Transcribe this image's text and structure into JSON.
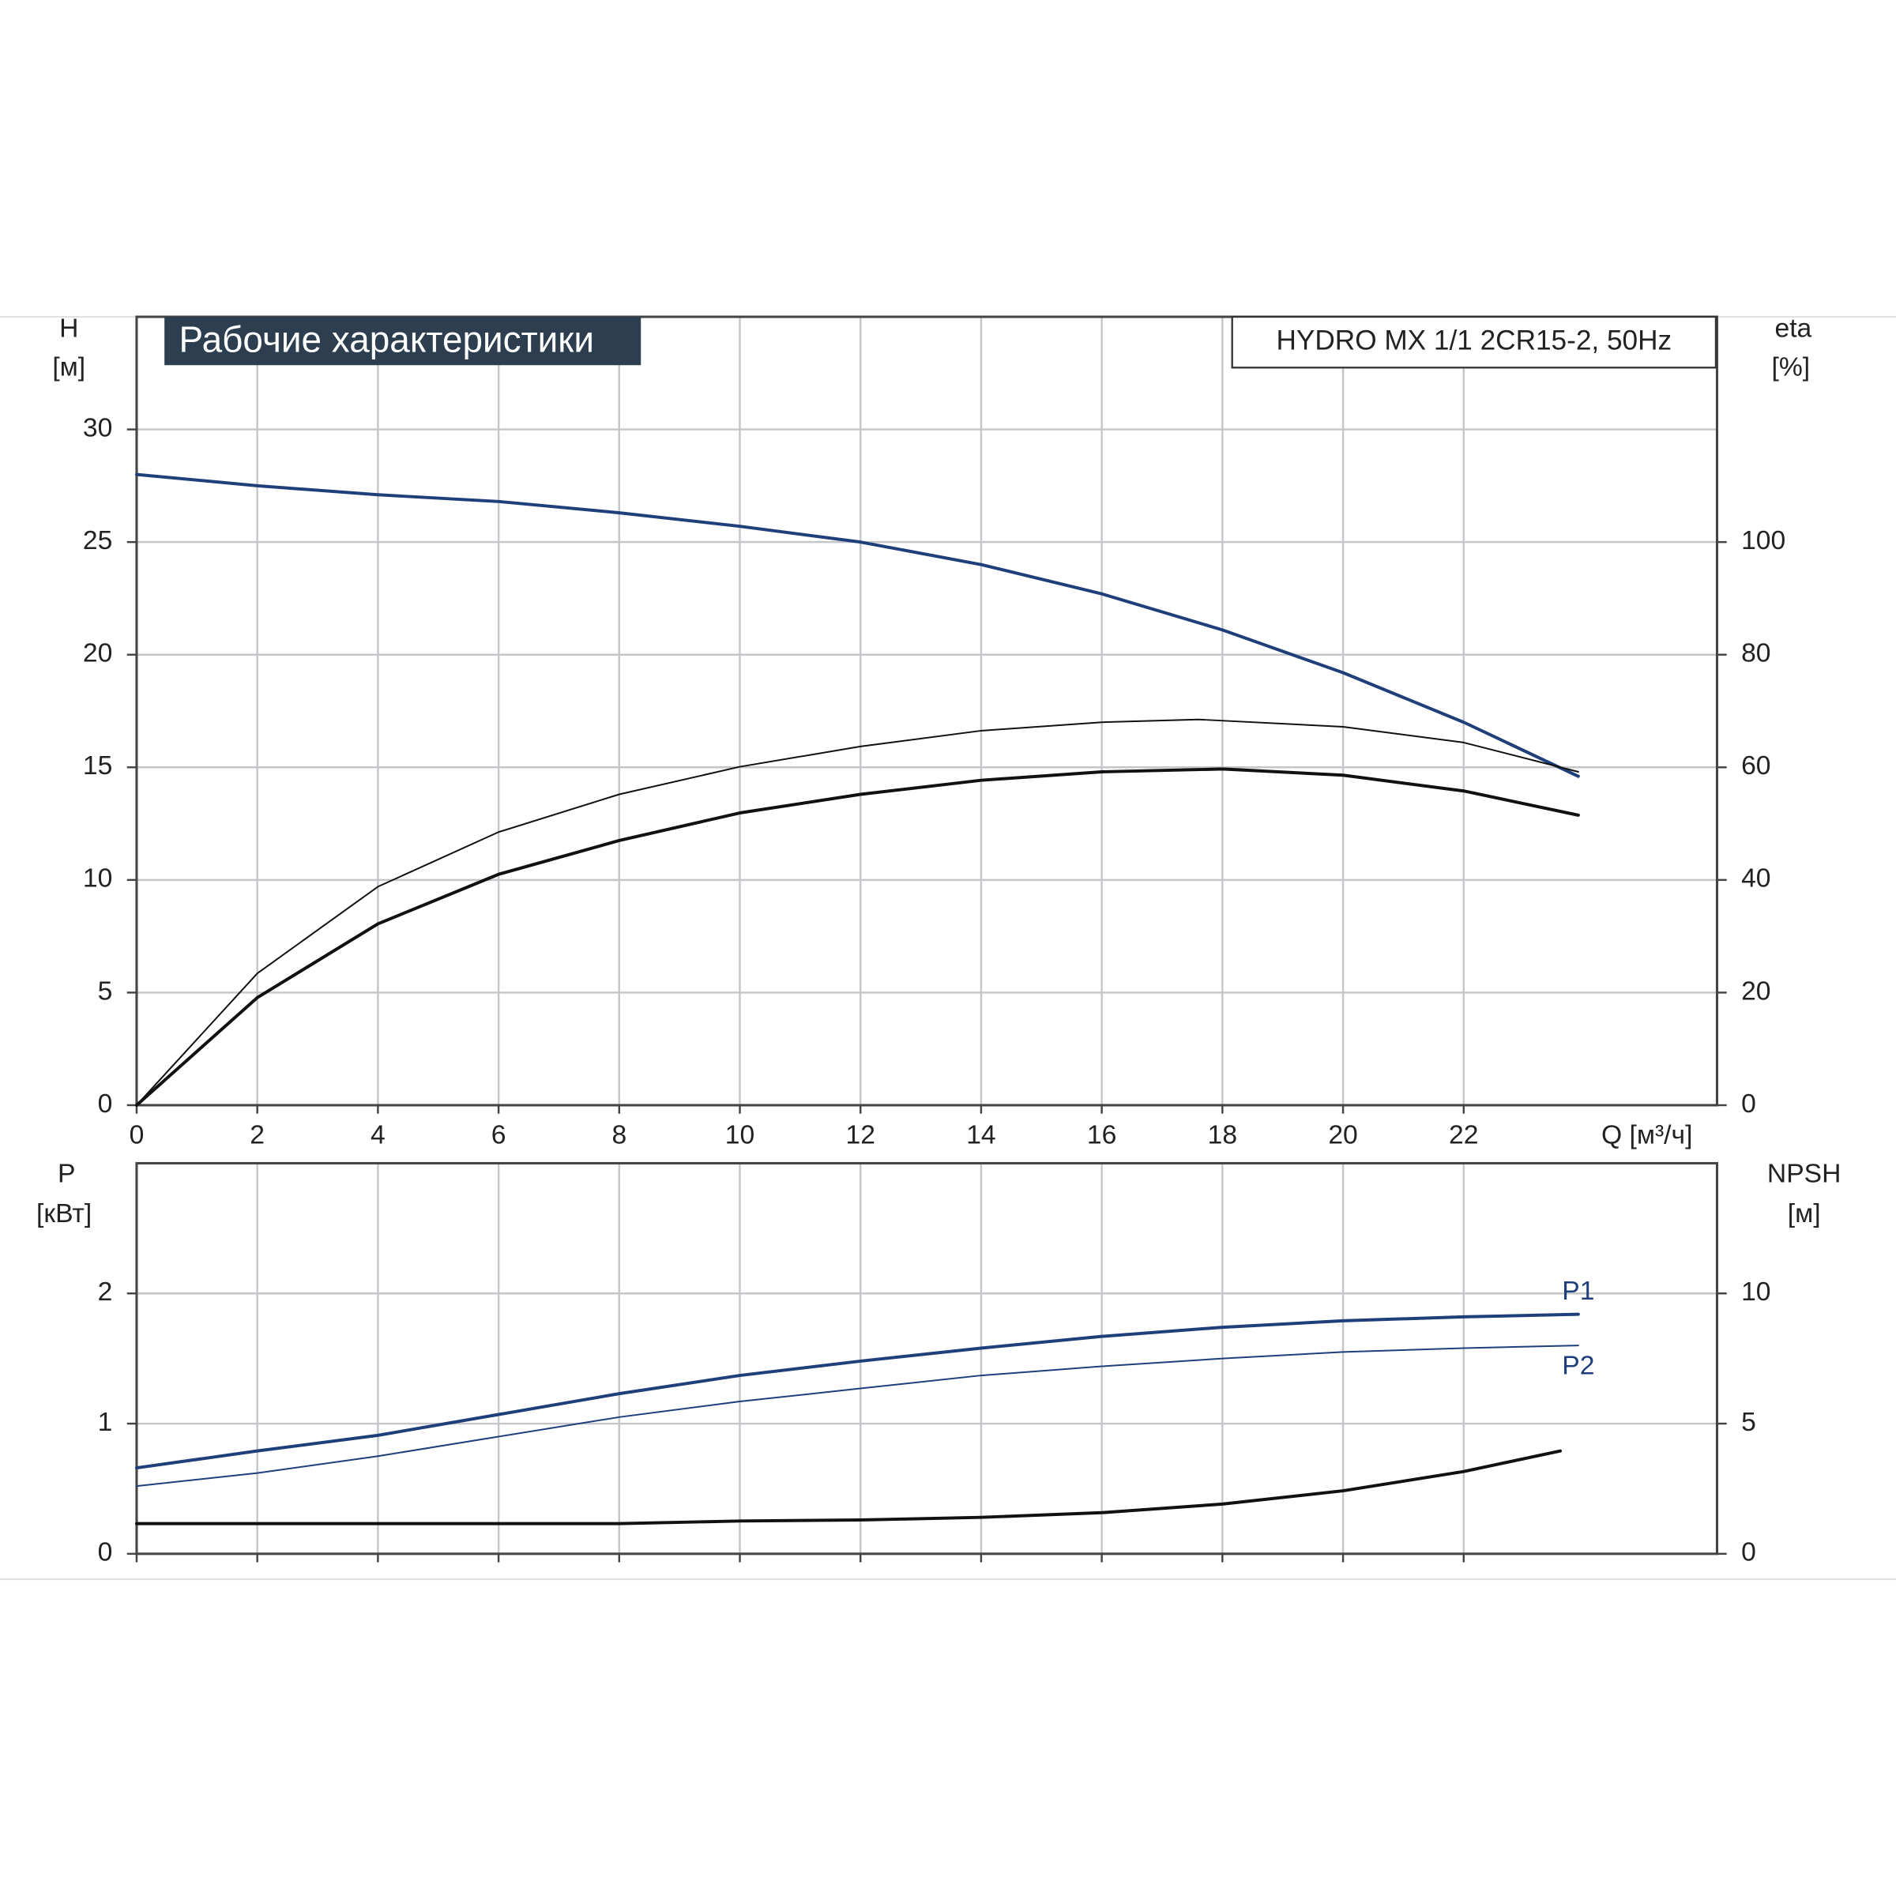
{
  "chart_data": [
    {
      "type": "line",
      "title": "Рабочие характеристики",
      "subtitle": "HYDRO MX 1/1 2CR15-2, 50Hz",
      "xlabel": "Q [м³/ч]",
      "ylabel": [
        "H",
        "[м]"
      ],
      "y2label": [
        "eta",
        "[%]"
      ],
      "xlim": [
        0,
        26.2
      ],
      "xticks": [
        0,
        2,
        4,
        6,
        8,
        10,
        12,
        14,
        16,
        18,
        20,
        22
      ],
      "ylim": [
        0,
        35
      ],
      "yticks": [
        0,
        5,
        10,
        15,
        20,
        25,
        30
      ],
      "y2lim": [
        0,
        140
      ],
      "y2ticks": [
        0,
        20,
        40,
        60,
        80,
        100
      ],
      "grid": true,
      "series": [
        {
          "color": "#1f3f7a",
          "linewidth": 2.6,
          "x": [
            0,
            2,
            4,
            6,
            8,
            10,
            12,
            14,
            16,
            18,
            20,
            22,
            23.9
          ],
          "values": [
            28,
            27.5,
            27.1,
            26.8,
            26.3,
            25.7,
            25.0,
            24.0,
            22.7,
            21.1,
            19.2,
            17.0,
            14.6
          ]
        },
        {
          "color": "#111111",
          "linewidth": 1.3,
          "axis": "y2",
          "x": [
            0,
            2,
            4,
            6,
            8,
            10,
            12,
            14,
            16,
            17.6,
            20,
            22,
            23.9
          ],
          "values": [
            0,
            23.4,
            38.8,
            48.5,
            55.2,
            60.1,
            63.7,
            66.5,
            68.0,
            68.5,
            67.2,
            64.4,
            59.2
          ]
        },
        {
          "color": "#111111",
          "linewidth": 2.6,
          "axis": "y2",
          "x": [
            0,
            2,
            4,
            6,
            8,
            10,
            12,
            14,
            16,
            18,
            20,
            22,
            23.9
          ],
          "values": [
            0,
            19.1,
            32.2,
            41.0,
            47.0,
            51.9,
            55.2,
            57.7,
            59.2,
            59.7,
            58.6,
            55.8,
            51.5
          ]
        }
      ]
    },
    {
      "type": "line",
      "ylabel": [
        "P",
        "[кВт]"
      ],
      "y2label": [
        "NPSH",
        "[м]"
      ],
      "ylim": [
        0,
        3
      ],
      "yticks": [
        0,
        1,
        2
      ],
      "y2lim": [
        0,
        15
      ],
      "y2ticks": [
        0,
        5,
        10
      ],
      "grid": true,
      "series": [
        {
          "name": "P1",
          "color": "#1f3f7a",
          "linewidth": 2.6,
          "x": [
            0,
            2,
            4,
            6,
            8,
            10,
            12,
            14,
            16,
            18,
            20,
            22,
            23.9
          ],
          "values": [
            0.66,
            0.79,
            0.91,
            1.07,
            1.23,
            1.37,
            1.48,
            1.58,
            1.67,
            1.74,
            1.79,
            1.82,
            1.84
          ]
        },
        {
          "name": "P2",
          "color": "#1f3f7a",
          "linewidth": 1.3,
          "x": [
            0,
            2,
            4,
            6,
            8,
            10,
            12,
            14,
            16,
            18,
            20,
            22,
            23.9
          ],
          "values": [
            0.52,
            0.62,
            0.75,
            0.9,
            1.05,
            1.17,
            1.27,
            1.37,
            1.44,
            1.5,
            1.55,
            1.58,
            1.6
          ]
        },
        {
          "color": "#111111",
          "linewidth": 2.6,
          "axis": "y2",
          "x": [
            0,
            8,
            10,
            12,
            14,
            16,
            18,
            20,
            22,
            23.6
          ],
          "values": [
            1.16,
            1.16,
            1.26,
            1.3,
            1.4,
            1.58,
            1.91,
            2.42,
            3.16,
            3.95
          ]
        }
      ]
    }
  ]
}
